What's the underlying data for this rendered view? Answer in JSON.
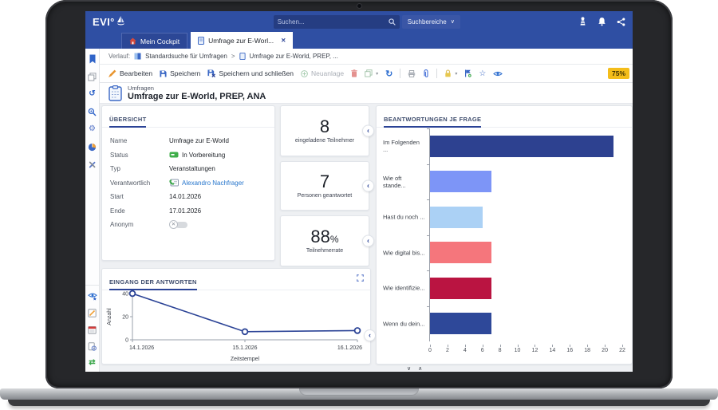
{
  "topbar": {
    "logo": "EVI°",
    "search_placeholder": "Suchen...",
    "scope_label": "Suchbereiche"
  },
  "tabs": [
    {
      "label": "Mein Cockpit",
      "active": false
    },
    {
      "label": "Umfrage zur E-Worl...",
      "active": true
    }
  ],
  "breadcrumb": {
    "label": "Verlauf:",
    "separator": ">",
    "items": [
      "Standardsuche für Umfragen",
      "Umfrage zur E-World, PREP, ..."
    ]
  },
  "toolbar": {
    "edit": "Bearbeiten",
    "save": "Speichern",
    "save_close": "Speichern und schließen",
    "new_item": "Neuanlage",
    "progress": "75%"
  },
  "page": {
    "category": "Umfragen",
    "title": "Umfrage zur E-World, PREP, ANA"
  },
  "overview": {
    "title": "ÜBERSICHT",
    "fields": [
      {
        "label": "Name",
        "value": "Umfrage zur E-World"
      },
      {
        "label": "Status",
        "value": "In Vorbereitung"
      },
      {
        "label": "Typ",
        "value": "Veranstaltungen"
      },
      {
        "label": "Verantwortlich",
        "value": "Alexandro Nachfrager"
      },
      {
        "label": "Start",
        "value": "14.01.2026"
      },
      {
        "label": "Ende",
        "value": "17.01.2026"
      },
      {
        "label": "Anonym",
        "value": "aus"
      }
    ]
  },
  "kpis": [
    {
      "value": "8",
      "suffix": "",
      "label": "eingeladene Teilnehmer"
    },
    {
      "value": "7",
      "suffix": "",
      "label": "Personen geantwortet"
    },
    {
      "value": "88",
      "suffix": "%",
      "label": "Teilnehmerrate"
    }
  ],
  "chart_data": [
    {
      "type": "line",
      "title": "EINGANG DER ANTWORTEN",
      "x": [
        "14.1.2026",
        "15.1.2026",
        "16.1.2026"
      ],
      "values": [
        40,
        7,
        8
      ],
      "xlabel": "Zeitstempel",
      "ylabel": "Anzahl",
      "ylim": [
        0,
        40
      ],
      "yticks": [
        0,
        20,
        40
      ],
      "line_color": "#2b4396",
      "marker": "open-circle",
      "grid": false
    },
    {
      "type": "bar",
      "title": "BEANTWORTUNGEN JE FRAGE",
      "orientation": "horizontal",
      "categories": [
        "Im Folgenden ...",
        "Wie oft stande...",
        "Hast du noch ...",
        "Wie digital bis...",
        "Wie identifizie...",
        "Wenn du dein..."
      ],
      "values": [
        21,
        7,
        6,
        7,
        7,
        7
      ],
      "colors": [
        "#2d4190",
        "#7d95f7",
        "#abd1f5",
        "#f5767c",
        "#ba1441",
        "#2e4899"
      ],
      "xlim": [
        0,
        22
      ],
      "xticks": [
        0,
        2,
        4,
        6,
        8,
        10,
        12,
        14,
        16,
        18,
        20,
        22
      ],
      "grid": false,
      "legend": "none"
    }
  ],
  "glyphs": {
    "caret_down": "▾",
    "chevron_down": "∨",
    "chevron_left": "‹",
    "close": "✕",
    "star": "☆",
    "refresh": "↻",
    "history": "↺",
    "gear": "⚙",
    "sync": "⇄",
    "scroll_down": "∨",
    "scroll_up": "∧",
    "toggle_off": "✕"
  },
  "colors": {
    "accent": "#2b4396",
    "topbar": "#2f4fa3",
    "status_green": "#3fae49",
    "progress_yellow": "#f4bd1a",
    "link_blue": "#2776cc"
  }
}
